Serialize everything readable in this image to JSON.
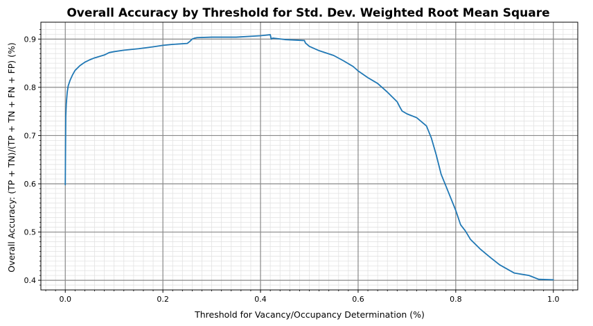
{
  "chart_data": {
    "type": "line",
    "title": "Overall Accuracy by Threshold for Std. Dev. Weighted Root Mean Square",
    "xlabel": "Threshold for Vacancy/Occupancy Determination (%)",
    "ylabel": "Overall Accuracy: (TP + TN)/(TP + TN + FN + FP) (%)",
    "xlim": [
      -0.05,
      1.05
    ],
    "ylim": [
      0.38,
      0.935
    ],
    "xticks": [
      0.0,
      0.2,
      0.4,
      0.6,
      0.8,
      1.0
    ],
    "xtick_labels": [
      "0.0",
      "0.2",
      "0.4",
      "0.6",
      "0.8",
      "1.0"
    ],
    "yticks": [
      0.4,
      0.5,
      0.6,
      0.7,
      0.8,
      0.9
    ],
    "ytick_labels": [
      "0.4",
      "0.5",
      "0.6",
      "0.7",
      "0.8",
      "0.9"
    ],
    "grid": true,
    "minor_grid": true,
    "line_color": "#1f77b4",
    "major_grid_color": "#888888",
    "minor_grid_color": "#e2e2e2",
    "series": [
      {
        "x": [
          0.0,
          0.001,
          0.002,
          0.004,
          0.006,
          0.01,
          0.015,
          0.02,
          0.03,
          0.04,
          0.05,
          0.06,
          0.07,
          0.08,
          0.09,
          0.1,
          0.12,
          0.15,
          0.18,
          0.2,
          0.22,
          0.25,
          0.255,
          0.26,
          0.265,
          0.27,
          0.3,
          0.35,
          0.4,
          0.42,
          0.422,
          0.425,
          0.45,
          0.49,
          0.492,
          0.5,
          0.52,
          0.55,
          0.57,
          0.59,
          0.6,
          0.62,
          0.64,
          0.66,
          0.68,
          0.685,
          0.69,
          0.7,
          0.72,
          0.74,
          0.75,
          0.76,
          0.77,
          0.78,
          0.8,
          0.81,
          0.82,
          0.83,
          0.85,
          0.87,
          0.89,
          0.92,
          0.95,
          0.97,
          1.0
        ],
        "y": [
          0.598,
          0.74,
          0.765,
          0.79,
          0.803,
          0.815,
          0.826,
          0.835,
          0.845,
          0.852,
          0.857,
          0.861,
          0.864,
          0.867,
          0.872,
          0.874,
          0.877,
          0.88,
          0.884,
          0.887,
          0.889,
          0.891,
          0.895,
          0.9,
          0.902,
          0.903,
          0.904,
          0.904,
          0.907,
          0.909,
          0.9,
          0.902,
          0.899,
          0.897,
          0.892,
          0.885,
          0.876,
          0.866,
          0.855,
          0.843,
          0.834,
          0.82,
          0.808,
          0.79,
          0.77,
          0.76,
          0.751,
          0.745,
          0.737,
          0.72,
          0.695,
          0.66,
          0.62,
          0.595,
          0.545,
          0.515,
          0.502,
          0.485,
          0.465,
          0.448,
          0.432,
          0.415,
          0.41,
          0.402,
          0.401
        ]
      }
    ]
  }
}
